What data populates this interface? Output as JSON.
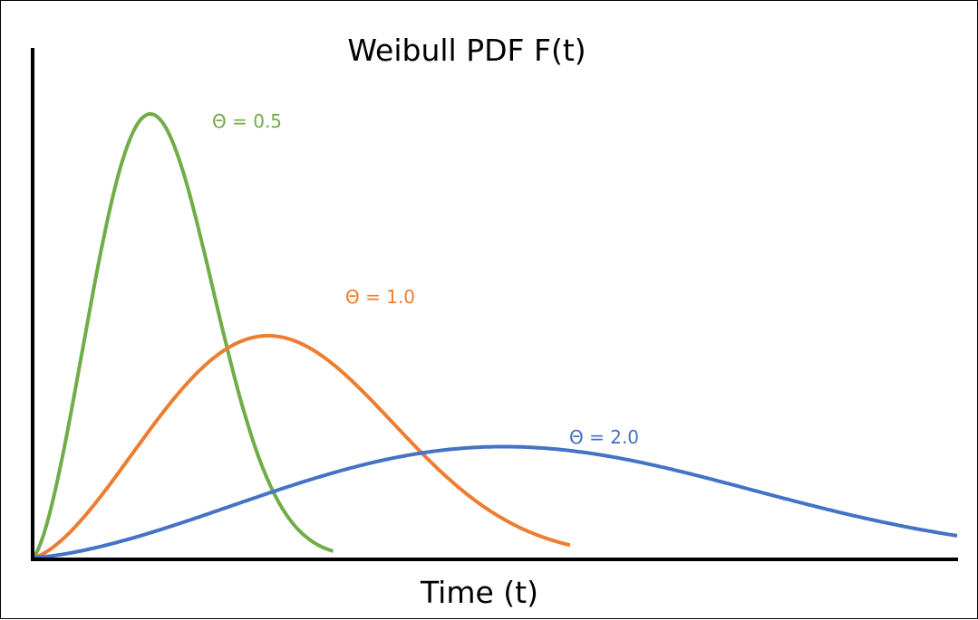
{
  "chart_data": {
    "type": "line",
    "title": "Weibull PDF F(t)",
    "xlabel": "Time (t)",
    "ylabel": "",
    "xlim": [
      0,
      3.2
    ],
    "ylim": [
      0,
      2.32
    ],
    "grid": false,
    "legend": "inline labels",
    "shape_k": 2.5,
    "series": [
      {
        "name": "Θ = 0.5",
        "theta": 0.5,
        "t_max": 1.04,
        "color": "#70AD47"
      },
      {
        "name": "Θ = 1.0",
        "theta": 1.0,
        "t_max": 1.86,
        "color": "#ED7D31"
      },
      {
        "name": "Θ = 2.0",
        "theta": 2.0,
        "t_max": 3.2,
        "color": "#4472C4"
      }
    ]
  }
}
